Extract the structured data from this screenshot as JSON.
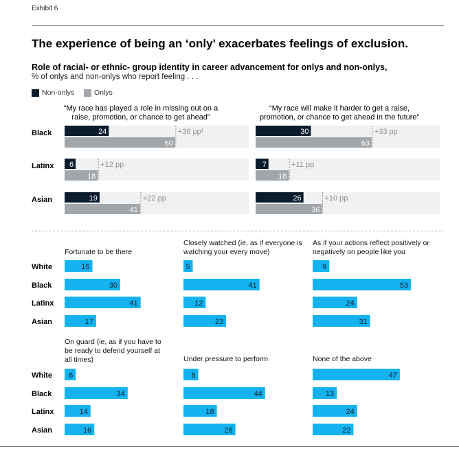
{
  "exhibit": "Exhibit 6",
  "title": "The experience of being an ‘only’ exacerbates feelings of exclusion.",
  "subtitle": "Role of racial- or ethnic- group identity in career advancement for onlys and non-onlys,",
  "subnote": "% of onlys and non-onlys who report feeling . . .",
  "legend": {
    "nononly": "Non-onlys",
    "only": "Onlys"
  },
  "colors": {
    "nononly": "#0b1c2c",
    "only": "#a1a6aa",
    "track": "#f1f1f1",
    "blue": "#14b3ef"
  },
  "chart_data": [
    {
      "type": "bar",
      "title": "“My race has played a role in missing out on a raise, promotion, or chance to get ahead”",
      "categories": [
        "Black",
        "Latinx",
        "Asian"
      ],
      "series": [
        {
          "name": "Non-onlys",
          "values": [
            24,
            6,
            19
          ]
        },
        {
          "name": "Onlys",
          "values": [
            60,
            18,
            41
          ]
        }
      ],
      "gap_labels": [
        "+36 pp¹",
        "+12 pp",
        "+22 pp"
      ],
      "ylim": [
        0,
        100
      ]
    },
    {
      "type": "bar",
      "title": "“My race will make it harder to get a raise, promotion, or chance to get ahead in the future”",
      "categories": [
        "Black",
        "Latinx",
        "Asian"
      ],
      "series": [
        {
          "name": "Non-onlys",
          "values": [
            30,
            7,
            26
          ]
        },
        {
          "name": "Onlys",
          "values": [
            63,
            18,
            36
          ]
        }
      ],
      "gap_labels": [
        "+33 pp",
        "+11 pp",
        "+10 pp"
      ],
      "ylim": [
        0,
        100
      ]
    },
    {
      "type": "bar",
      "title": "Fortunate to be there",
      "categories": [
        "White",
        "Black",
        "Latinx",
        "Asian"
      ],
      "values": [
        15,
        30,
        41,
        17
      ]
    },
    {
      "type": "bar",
      "title": "Closely watched (ie, as if everyone is watching your every move)",
      "categories": [
        "White",
        "Black",
        "Latinx",
        "Asian"
      ],
      "values": [
        5,
        41,
        12,
        23
      ]
    },
    {
      "type": "bar",
      "title": "As if your actions reflect positively or negatively on people like you",
      "categories": [
        "White",
        "Black",
        "Latinx",
        "Asian"
      ],
      "values": [
        9,
        53,
        24,
        31
      ]
    },
    {
      "type": "bar",
      "title": "On guard (ie, as if you have to be ready to defend yourself at all times)",
      "categories": [
        "White",
        "Black",
        "Latinx",
        "Asian"
      ],
      "values": [
        6,
        34,
        14,
        16
      ]
    },
    {
      "type": "bar",
      "title": "Under pressure to perform",
      "categories": [
        "White",
        "Black",
        "Latinx",
        "Asian"
      ],
      "values": [
        8,
        44,
        18,
        28
      ]
    },
    {
      "type": "bar",
      "title": "None of the above",
      "categories": [
        "White",
        "Black",
        "Latinx",
        "Asian"
      ],
      "values": [
        47,
        13,
        24,
        22
      ]
    }
  ]
}
